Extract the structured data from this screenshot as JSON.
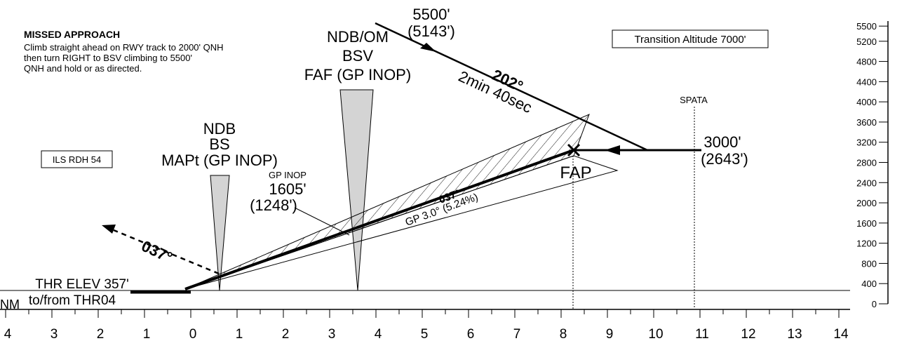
{
  "missed_approach": {
    "title": "MISSED APPROACH",
    "lines": [
      "Climb straight ahead on RWY track to 2000' QNH",
      "then turn RIGHT to BSV climbing to 5500'",
      "QNH and hold or as directed."
    ]
  },
  "boxes": {
    "ils_rdh": "ILS RDH 54",
    "transition_altitude": "Transition Altitude 7000'"
  },
  "inbound": {
    "altitude": "5500'",
    "altitude_hat": "(5143')",
    "course": "202°",
    "time": "2min 40sec"
  },
  "ndb_om": {
    "line1": "NDB/OM",
    "line2": "BSV",
    "line3": "FAF (GP INOP)"
  },
  "ndb_mapt": {
    "line1": "NDB",
    "line2": "BS",
    "line3": "MAPt (GP INOP)"
  },
  "gp_inop": {
    "label": "GP INOP",
    "altitude": "1605'",
    "altitude_hat": "(1248')"
  },
  "final": {
    "course": "037°",
    "glidepath": "GP 3.0° (5.24%)"
  },
  "fap": {
    "label": "FAP",
    "altitude": "3000'",
    "altitude_hat": "(2643')"
  },
  "spata": "SPATA",
  "missed_course": "037°",
  "threshold": {
    "elevation": "THR ELEV 357'",
    "reference": "to/from THR04"
  },
  "distance_scale": {
    "unit": "NM",
    "labels": [
      "4",
      "3",
      "2",
      "1",
      "0",
      "1",
      "2",
      "3",
      "4",
      "5",
      "6",
      "7",
      "8",
      "9",
      "10",
      "11",
      "12",
      "13",
      "14"
    ]
  },
  "altitude_scale": {
    "labels": [
      "5500",
      "5200",
      "4800",
      "4400",
      "4000",
      "3600",
      "3200",
      "2800",
      "2400",
      "2000",
      "1600",
      "1200",
      "800",
      "400",
      "0"
    ]
  }
}
